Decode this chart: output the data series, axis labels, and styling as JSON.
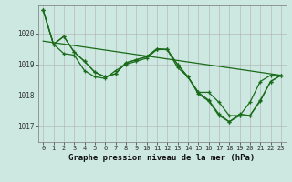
{
  "title": "Graphe pression niveau de la mer (hPa)",
  "background_color": "#cce8e0",
  "grid_color_major": "#b0b0b0",
  "grid_color_minor": "#d0d0d0",
  "line_color": "#1a6b1a",
  "xlim": [
    -0.5,
    23.5
  ],
  "ylim": [
    1016.5,
    1020.9
  ],
  "yticks": [
    1017,
    1018,
    1019,
    1020
  ],
  "xtick_labels": [
    "0",
    "1",
    "2",
    "3",
    "4",
    "5",
    "6",
    "7",
    "8",
    "9",
    "10",
    "11",
    "12",
    "13",
    "14",
    "15",
    "16",
    "17",
    "18",
    "19",
    "20",
    "21",
    "22",
    "23"
  ],
  "line1": [
    1020.75,
    1019.65,
    1019.9,
    1019.4,
    1019.1,
    1018.75,
    1018.6,
    1018.7,
    1019.05,
    1019.15,
    1019.25,
    1019.5,
    1019.48,
    1019.0,
    1018.6,
    1018.1,
    1017.85,
    1017.4,
    1017.15,
    1017.4,
    1017.35,
    1017.85,
    1018.45,
    1018.65
  ],
  "line2": [
    1020.75,
    1019.65,
    1019.35,
    1019.3,
    1018.8,
    1018.6,
    1018.55,
    1018.8,
    1019.0,
    1019.1,
    1019.2,
    1019.48,
    1019.48,
    1018.9,
    1018.6,
    1018.05,
    1017.82,
    1017.35,
    1017.15,
    1017.35,
    1017.35,
    1017.82,
    1018.45,
    1018.65
  ],
  "line3": [
    1020.75,
    1019.65,
    1019.9,
    1019.4,
    1019.1,
    1018.75,
    1018.6,
    1018.7,
    1019.05,
    1019.15,
    1019.25,
    1019.5,
    1019.48,
    1019.0,
    1018.6,
    1018.1,
    1018.1,
    1017.78,
    1017.35,
    1017.35,
    1017.78,
    1018.45,
    1018.65,
    1018.65
  ],
  "line4_x": [
    0,
    23
  ],
  "line4_y": [
    1019.75,
    1018.65
  ],
  "ylabel_fontsize": 5.5,
  "xlabel_fontsize": 6.5,
  "title_fontsize": 6.5
}
